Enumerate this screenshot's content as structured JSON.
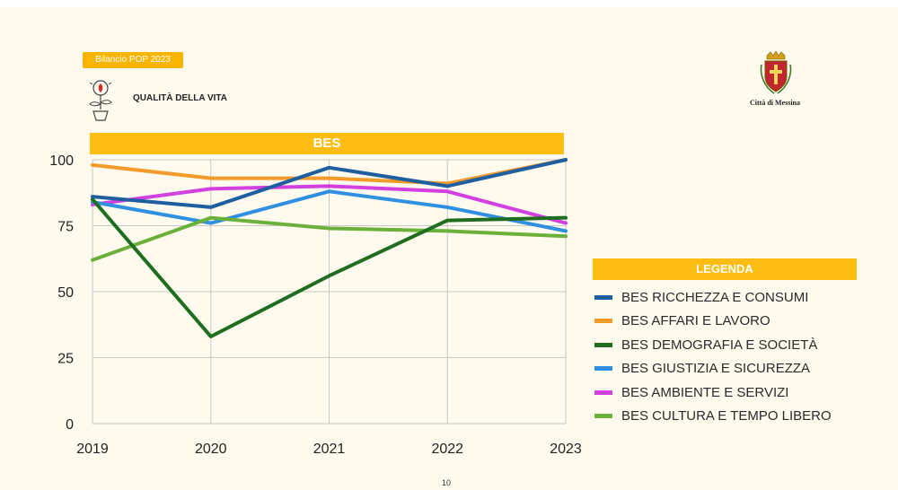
{
  "header": {
    "tag": "Bilancio POP 2023",
    "section_label": "QUALITÀ DELLA VITA",
    "org_name": "Città di Messina"
  },
  "legend_title": "LEGENDA",
  "page_number": "10",
  "chart_data": {
    "type": "line",
    "title": "BES",
    "xlabel": "",
    "ylabel": "",
    "x": [
      "2019",
      "2020",
      "2021",
      "2022",
      "2023"
    ],
    "ylim": [
      0,
      100
    ],
    "yticks": [
      0,
      25,
      50,
      75,
      100
    ],
    "grid": true,
    "legend_position": "right",
    "series": [
      {
        "name": "BES RICCHEZZA E CONSUMI",
        "color": "#1f5fa0",
        "values": [
          86,
          82,
          97,
          90,
          100
        ]
      },
      {
        "name": "BES AFFARI E LAVORO",
        "color": "#f39a2b",
        "values": [
          98,
          93,
          93,
          91,
          100
        ]
      },
      {
        "name": "BES DEMOGRAFIA E SOCIETÀ",
        "color": "#1f6e1f",
        "values": [
          85,
          33,
          56,
          77,
          78
        ]
      },
      {
        "name": "BES GIUSTIZIA E SICUREZZA",
        "color": "#2f8fe0",
        "values": [
          84,
          76,
          88,
          82,
          73
        ]
      },
      {
        "name": "BES AMBIENTE E SERVIZI",
        "color": "#d240e0",
        "values": [
          83,
          89,
          90,
          88,
          76
        ]
      },
      {
        "name": "BES CULTURA E TEMPO LIBERO",
        "color": "#6bb03a",
        "values": [
          62,
          78,
          74,
          73,
          71
        ]
      }
    ]
  }
}
